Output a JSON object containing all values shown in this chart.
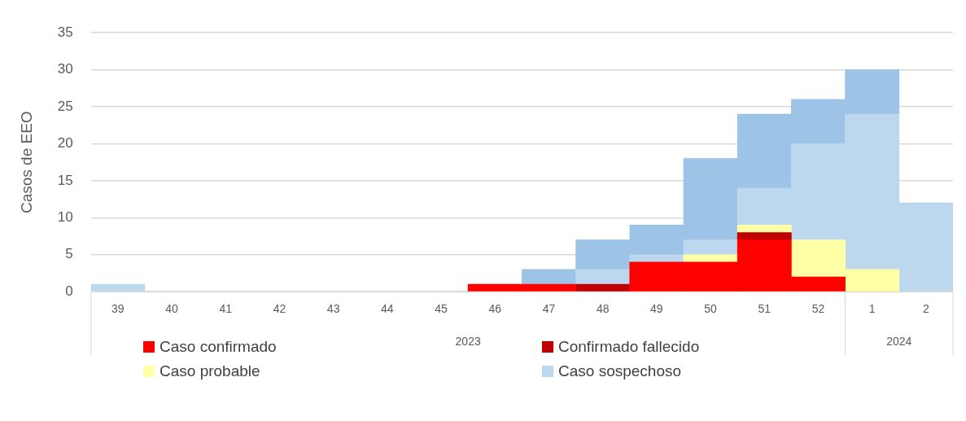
{
  "chart_data": {
    "type": "bar",
    "stacked": true,
    "ylabel": "Casos de EEO",
    "categories": [
      "39",
      "40",
      "41",
      "42",
      "43",
      "44",
      "45",
      "46",
      "47",
      "48",
      "49",
      "50",
      "51",
      "52",
      "1",
      "2"
    ],
    "series": [
      {
        "name": "Caso confirmado",
        "color": "#ff0000",
        "values": [
          0,
          0,
          0,
          0,
          0,
          0,
          0,
          1,
          1,
          0,
          4,
          4,
          7,
          2,
          0,
          0
        ]
      },
      {
        "name": "Confirmado fallecido",
        "color": "#c00000",
        "values": [
          0,
          0,
          0,
          0,
          0,
          0,
          0,
          0,
          0,
          1,
          0,
          0,
          1,
          0,
          0,
          0
        ]
      },
      {
        "name": "Caso probable",
        "color": "#ffffa5",
        "values": [
          0,
          0,
          0,
          0,
          0,
          0,
          0,
          0,
          0,
          0,
          0,
          1,
          1,
          5,
          3,
          0
        ]
      },
      {
        "name": "Caso sospechoso",
        "color": "#bdd7ee",
        "values": [
          1,
          0,
          0,
          0,
          0,
          0,
          0,
          0,
          0,
          2,
          1,
          2,
          5,
          13,
          21,
          12
        ]
      },
      {
        "color": "#9dc3e6",
        "values": [
          0,
          0,
          0,
          0,
          0,
          0,
          0,
          0,
          2,
          4,
          4,
          11,
          10,
          6,
          6,
          0
        ]
      }
    ],
    "ylim": [
      0,
      35
    ],
    "yticks": [
      0,
      5,
      10,
      15,
      20,
      25,
      30,
      35
    ],
    "grid": "y",
    "legend": "bottom",
    "annotations": [
      "2023",
      "2024"
    ]
  }
}
